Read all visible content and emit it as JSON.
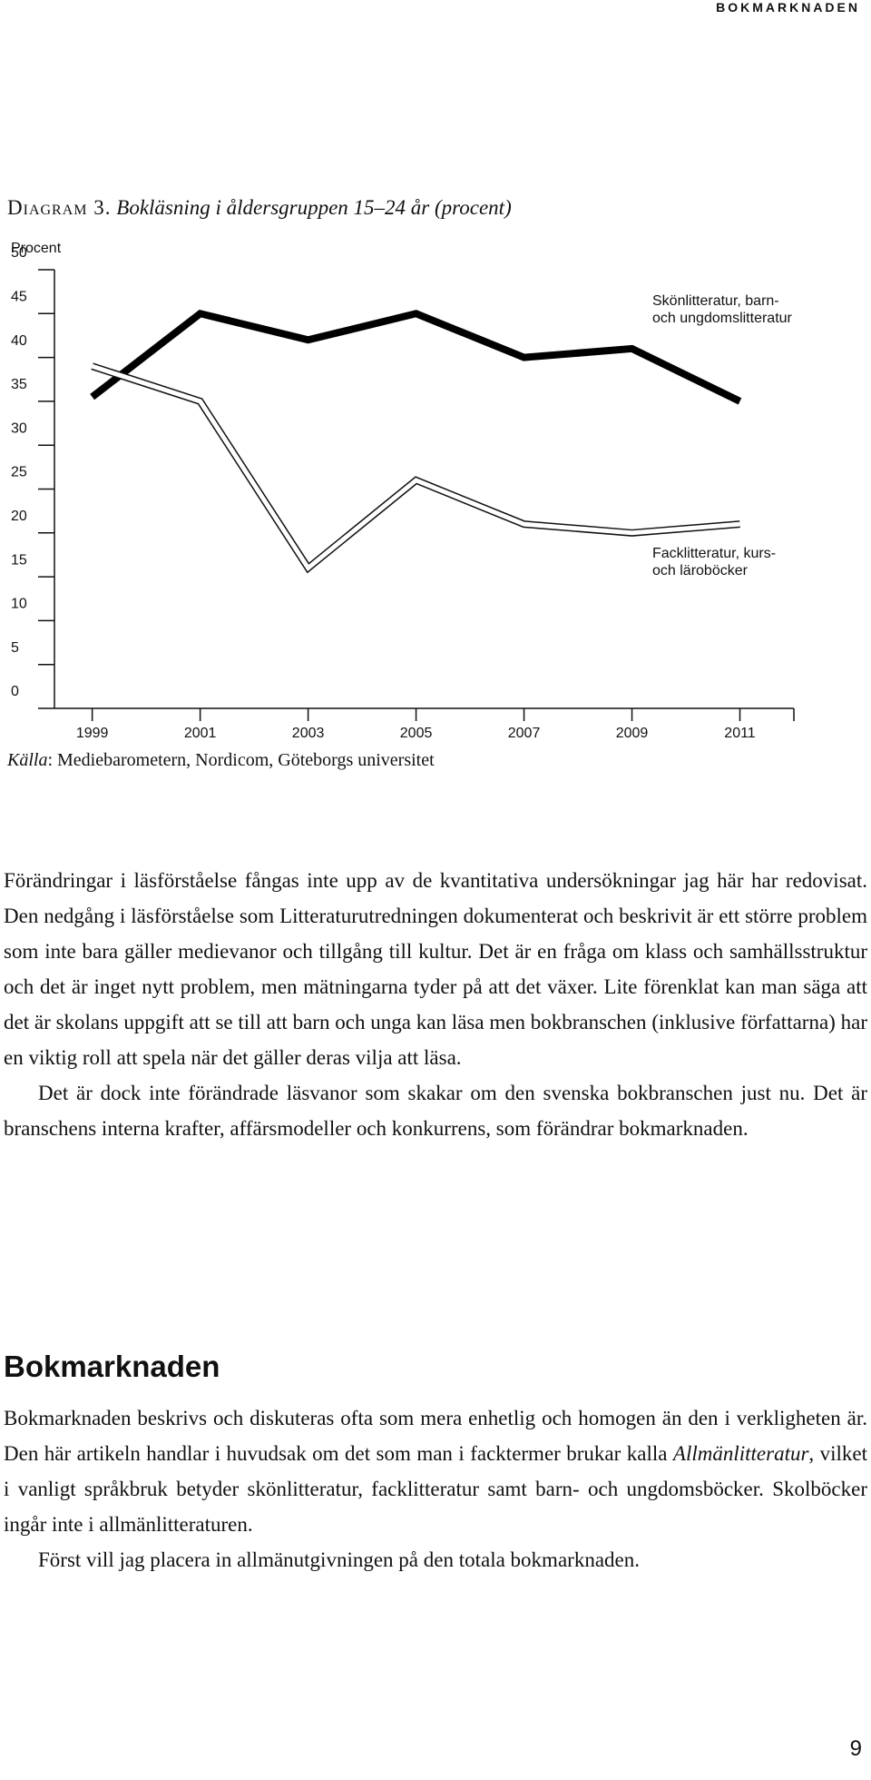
{
  "header": {
    "running_title": "BOKMARKNADEN"
  },
  "chart_data": {
    "type": "line",
    "figure_label": "Diagram 3.",
    "title": "Bokläsning i åldersgruppen 15–24 år (procent)",
    "y_label": "Procent",
    "x": [
      1999,
      2001,
      2003,
      2005,
      2007,
      2009,
      2011
    ],
    "series": [
      {
        "name": "Skönlitteratur, barn- och ungdomslitteratur",
        "color": "#000000",
        "style": "solid",
        "values": [
          35.5,
          45,
          42,
          45,
          40,
          41,
          35
        ]
      },
      {
        "name": "Facklitteratur, kurs- och läroböcker",
        "color": "#ffffff",
        "style": "outlined",
        "values": [
          39,
          35,
          16,
          26,
          21,
          20,
          21
        ]
      }
    ],
    "xlim": [
      1998.3,
      2012
    ],
    "xticks": [
      1999,
      2001,
      2003,
      2005,
      2007,
      2009,
      2011
    ],
    "ylim": [
      0,
      50
    ],
    "yticks": [
      0,
      5,
      10,
      15,
      20,
      25,
      30,
      35,
      40,
      45,
      50
    ],
    "grid": false,
    "source_label": "Källa",
    "source": ": Mediebarometern, Nordicom, Göteborgs universitet"
  },
  "body": {
    "paragraphs": [
      [
        "Förändringar i läsförståelse fångas inte upp av de kvantitativa undersökningar jag här har redovisat. Den nedgång i läsförståelse som Litteraturutredningen dokumenterat och beskrivit är ett större problem som inte bara gäller medievanor och tillgång till kultur. Det är en fråga om klass och samhällsstruktur och det är inget nytt problem, men mätningarna tyder på att det växer. Lite förenklat kan man säga att det är skolans uppgift att se till att barn och unga kan läsa men bokbranschen (inklusive författarna) har en viktig roll att spela när det gäller deras vilja att läsa."
      ],
      [
        "Det är dock inte förändrade läsvanor som skakar om den svenska bokbranschen just nu. Det är branschens interna krafter, affärsmodeller och konkurrens, som förändrar bokmarknaden."
      ]
    ]
  },
  "section": {
    "heading": "Bokmarknaden",
    "paragraphs": [
      [
        "Bokmarknaden beskrivs och diskuteras ofta som mera enhetlig och homogen än den i verkligheten är. Den här artikeln handlar i huvudsak om det som man i facktermer brukar kalla ",
        "Allmänlitteratur",
        ", vilket i vanligt språkbruk betyder skönlitteratur, facklitteratur samt barn- och ungdomsböcker. Skolböcker ingår inte i allmänlitteraturen."
      ],
      [
        "Först vill jag placera in allmänutgivningen på den totala bokmarknaden."
      ]
    ]
  },
  "footer": {
    "page_number": "9"
  }
}
